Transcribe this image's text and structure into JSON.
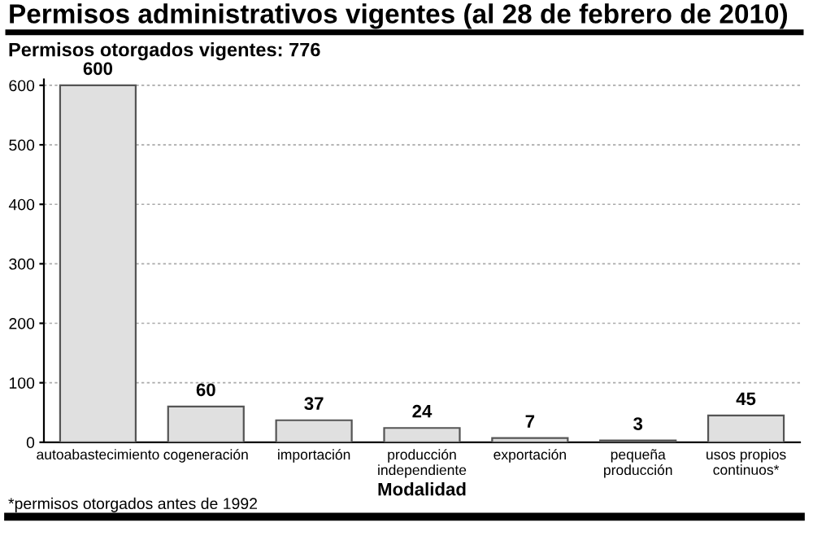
{
  "chart_data": {
    "type": "bar",
    "title": "Permisos administrativos vigentes (al 28 de febrero de 2010)",
    "subtitle": "Permisos otorgados vigentes: 776",
    "xlabel": "Modalidad",
    "categories": [
      "autoabastecimiento",
      "cogeneración",
      "importación",
      "producción\nindependiente",
      "exportación",
      "pequeña\nproducción",
      "usos propios\ncontinuos*"
    ],
    "values": [
      600,
      60,
      37,
      24,
      7,
      3,
      45
    ],
    "color": "#e0e0e0",
    "data_labels": true,
    "ylim": [
      0,
      610
    ],
    "yticks": [
      0,
      100,
      200,
      300,
      400,
      500,
      600
    ],
    "grid": "y",
    "annotations": [
      "*permisos otorgados antes de 1992"
    ]
  }
}
